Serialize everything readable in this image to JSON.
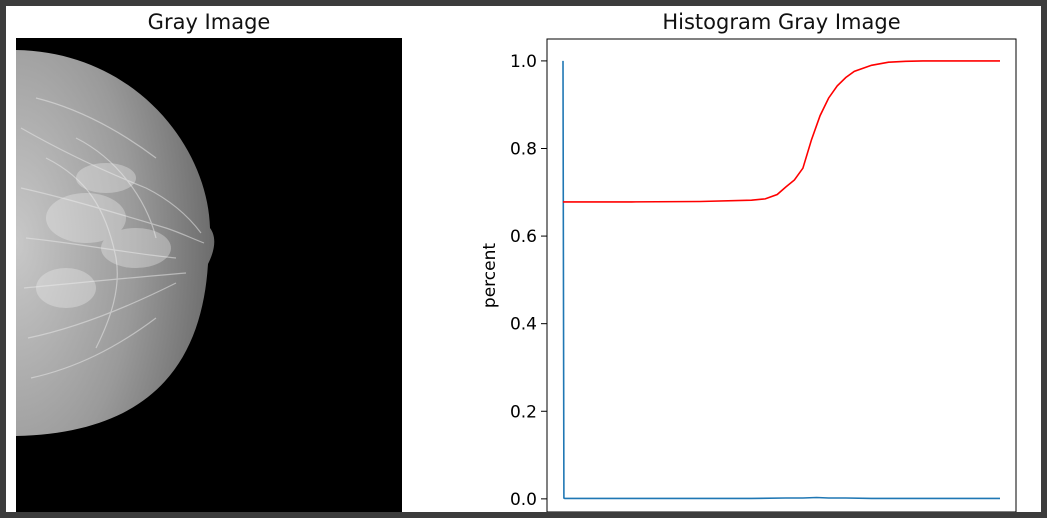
{
  "figure": {
    "left_title": "Gray Image",
    "right_title": "Histogram Gray Image"
  },
  "chart_data": {
    "type": "line",
    "title": "Histogram Gray Image",
    "xlabel": "",
    "ylabel": "percent",
    "xlim": [
      0,
      255
    ],
    "ylim": [
      -0.03,
      1.05
    ],
    "yticks": [
      "0.0",
      "0.2",
      "0.4",
      "0.6",
      "0.8",
      "1.0"
    ],
    "grid": false,
    "series": [
      {
        "color": "#1f77b4",
        "x": [
          0,
          0.5,
          1,
          2,
          40,
          80,
          110,
          130,
          140,
          148,
          155,
          165,
          180,
          200,
          220,
          240,
          255
        ],
        "y": [
          1.0,
          0.002,
          0.001,
          0.001,
          0.001,
          0.001,
          0.001,
          0.002,
          0.002,
          0.003,
          0.002,
          0.002,
          0.001,
          0.001,
          0.001,
          0.001,
          0.001
        ]
      },
      {
        "color": "#ff0000",
        "x": [
          0,
          40,
          80,
          110,
          118,
          125,
          130,
          135,
          140,
          145,
          150,
          155,
          160,
          165,
          170,
          180,
          190,
          200,
          210,
          225,
          240,
          255
        ],
        "y": [
          0.678,
          0.678,
          0.679,
          0.682,
          0.685,
          0.695,
          0.712,
          0.728,
          0.755,
          0.82,
          0.875,
          0.915,
          0.943,
          0.962,
          0.976,
          0.99,
          0.997,
          0.999,
          1.0,
          1.0,
          1.0,
          1.0
        ]
      }
    ]
  }
}
